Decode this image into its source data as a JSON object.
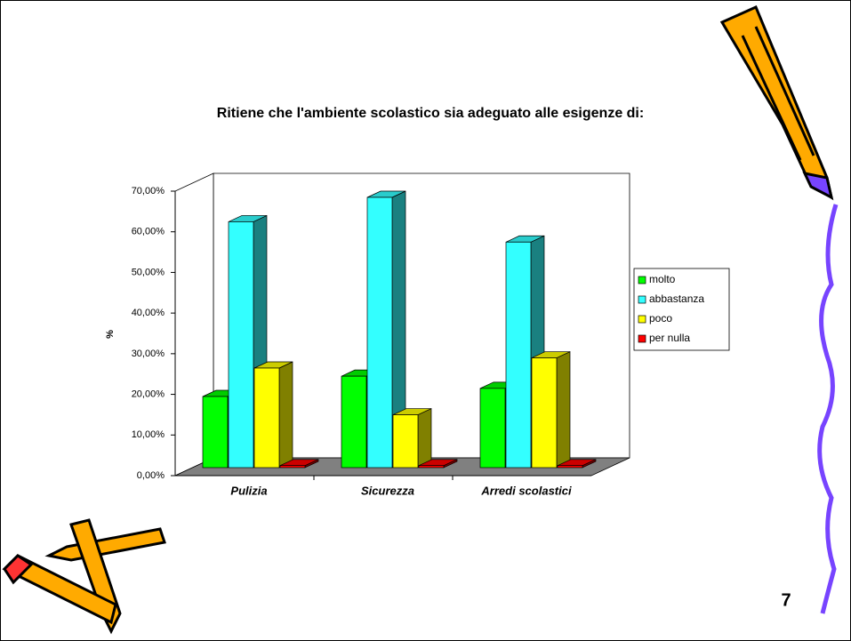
{
  "chart_data": {
    "type": "bar3d",
    "title": "Ritiene che l'ambiente scolastico sia adeguato alle esigenze di:",
    "y_label": "%",
    "categories": [
      "Pulizia",
      "Sicurezza",
      "Arredi scolastici"
    ],
    "series": [
      {
        "name": "molto",
        "color": "#00ff00",
        "values": [
          17.5,
          22.5,
          19.5
        ]
      },
      {
        "name": "abbastanza",
        "color": "#33ffff",
        "values": [
          60.5,
          66.5,
          55.5
        ]
      },
      {
        "name": "poco",
        "color": "#ffff00",
        "values": [
          24.5,
          13,
          27
        ]
      },
      {
        "name": "per nulla",
        "color": "#ff0000",
        "values": [
          0.5,
          0.5,
          0.5
        ]
      }
    ],
    "ylim": [
      0,
      70
    ],
    "yticks": [
      {
        "value": 0,
        "label": "0,00%"
      },
      {
        "value": 10,
        "label": "10,00%"
      },
      {
        "value": 20,
        "label": "20,00%"
      },
      {
        "value": 30,
        "label": "30,00%"
      },
      {
        "value": 40,
        "label": "40,00%"
      },
      {
        "value": 50,
        "label": "50,00%"
      },
      {
        "value": 60,
        "label": "60,00%"
      },
      {
        "value": 70,
        "label": "70,00%"
      }
    ],
    "legend": "right"
  },
  "page_number": "7"
}
